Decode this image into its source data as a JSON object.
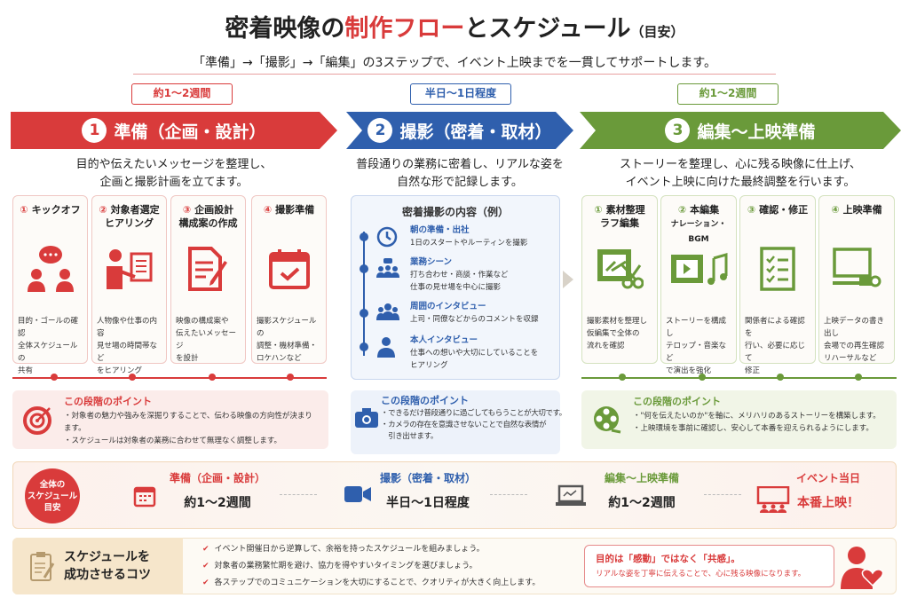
{
  "title": {
    "pre": "密着映像の",
    "accent": "制作フロー",
    "post": "とスケジュール",
    "note": "（目安）"
  },
  "subtitle": "「準備」→「撮影」→「編集」の3ステップで、イベント上映までを一貫してサポートします。",
  "colors": {
    "red": "#d93b3b",
    "blue": "#2f5fad",
    "green": "#6a9a3a"
  },
  "steps": [
    {
      "duration": "約1〜2週間",
      "num": "1",
      "label": "準備（企画・設計）",
      "desc": [
        "目的や伝えたいメッセージを整理し、",
        "企画と撮影計画を立てます。"
      ],
      "cards": [
        {
          "n": "①",
          "title": [
            "キックオフ"
          ],
          "icon": "chat-people-icon",
          "text": [
            "目的・ゴールの確認",
            "全体スケジュールの",
            "共有"
          ]
        },
        {
          "n": "②",
          "title": [
            "対象者選定",
            "ヒアリング"
          ],
          "icon": "presenter-icon",
          "text": [
            "人物像や仕事の内容",
            "見せ場の時間帯など",
            "をヒアリング"
          ]
        },
        {
          "n": "③",
          "title": [
            "企画設計",
            "構成案の作成"
          ],
          "icon": "document-pen-icon",
          "text": [
            "映像の構成案や",
            "伝えたいメッセージ",
            "を設計"
          ]
        },
        {
          "n": "④",
          "title": [
            "撮影準備"
          ],
          "icon": "calendar-check-icon",
          "text": [
            "撮影スケジュールの",
            "調整・機材準備・",
            "ロケハンなど"
          ]
        }
      ],
      "point": {
        "heading": "この段階のポイント",
        "icon": "target-icon",
        "bullets": [
          "・対象者の魅力や強みを深掘りすることで、伝わる映像の方向性が決まります。",
          "・スケジュールは対象者の業務に合わせて無理なく調整します。"
        ]
      }
    },
    {
      "duration": "半日〜1日程度",
      "num": "2",
      "label": "撮影（密着・取材）",
      "desc": [
        "普段通りの業務に密着し、リアルな姿を",
        "自然な形で記録します。"
      ],
      "box": {
        "heading": "密着撮影の内容（例）",
        "items": [
          {
            "icon": "clock-icon",
            "title": "朝の準備・出社",
            "text": [
              "1日のスタートやルーティンを撮影"
            ]
          },
          {
            "icon": "meeting-icon",
            "title": "業務シーン",
            "text": [
              "打ち合わせ・商談・作業など",
              "仕事の見せ場を中心に撮影"
            ]
          },
          {
            "icon": "group-icon",
            "title": "周囲のインタビュー",
            "text": [
              "上司・同僚などからのコメントを収録"
            ]
          },
          {
            "icon": "person-icon",
            "title": "本人インタビュー",
            "text": [
              "仕事への想いや大切にしていることを",
              "ヒアリング"
            ]
          }
        ]
      },
      "point": {
        "heading": "この段階のポイント",
        "icon": "camera-icon",
        "bullets": [
          "・できるだけ普段通りに過ごしてもらうことが大切です。",
          "・カメラの存在を意識させないことで自然な表情が",
          "　引き出せます。"
        ]
      }
    },
    {
      "duration": "約1〜2週間",
      "num": "3",
      "label": "編集〜上映準備",
      "desc": [
        "ストーリーを整理し、心に残る映像に仕上げ、",
        "イベント上映に向けた最終調整を行います。"
      ],
      "cards": [
        {
          "n": "①",
          "title": [
            "素材整理",
            "ラフ編集"
          ],
          "icon": "film-scissors-icon",
          "text": [
            "撮影素材を整理し",
            "仮編集で全体の",
            "流れを確認"
          ]
        },
        {
          "n": "②",
          "title": [
            "本編集",
            "ナレーション・BGM"
          ],
          "icon": "film-music-icon",
          "text": [
            "ストーリーを構成し",
            "テロップ・音楽など",
            "で演出を強化"
          ]
        },
        {
          "n": "③",
          "title": [
            "確認・修正"
          ],
          "icon": "checklist-icon",
          "text": [
            "関係者による確認を",
            "行い、必要に応じて",
            "修正"
          ]
        },
        {
          "n": "④",
          "title": [
            "上映準備"
          ],
          "icon": "projector-screen-icon",
          "text": [
            "上映データの書き出し",
            "会場での再生確認",
            "リハーサルなど"
          ]
        }
      ],
      "point": {
        "heading": "この段階のポイント",
        "icon": "film-reel-icon",
        "bullets": [
          "・\"何を伝えたいのか\"を軸に、メリハリのあるストーリーを構築します。",
          "・上映環境を事前に確認し、安心して本番を迎えられるようにします。"
        ]
      }
    }
  ],
  "schedule": {
    "badge": [
      "全体の",
      "スケジュール",
      "目安"
    ],
    "items": [
      {
        "icon": "calendar-icon",
        "label": "準備（企画・設計）",
        "value": "約1〜2週間"
      },
      {
        "icon": "video-camera-icon",
        "label": "撮影（密着・取材）",
        "value": "半日〜1日程度"
      },
      {
        "icon": "laptop-icon",
        "label": "編集〜上映準備",
        "value": "約1〜2週間"
      },
      {
        "icon": "screen-audience-icon",
        "label": "イベント当日",
        "value": "本番上映！"
      }
    ]
  },
  "tips": {
    "title": [
      "スケジュールを",
      "成功させるコツ"
    ],
    "items": [
      "イベント開催日から逆算して、余裕を持ったスケジュールを組みましょう。",
      "対象者の業務繁忙期を避け、協力を得やすいタイミングを選びましょう。",
      "各ステップでのコミュニケーションを大切にすることで、クオリティが大きく向上します。"
    ],
    "bubble": {
      "head": "目的は「感動」ではなく「共感」。",
      "text": "リアルな姿を丁寧に伝えることで、心に残る映像になります。"
    }
  }
}
